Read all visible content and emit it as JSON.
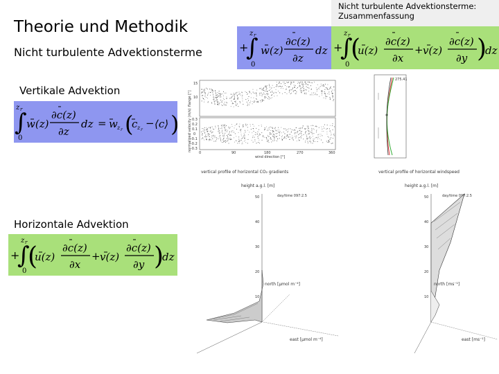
{
  "slide": {
    "title": "Theorie und Methodik",
    "subtitle": "Nicht turbulente Advektionsterme",
    "vertical_label": "Vertikale Advektion",
    "horizontal_label": "Horizontale Advektion",
    "summary_title": "Nicht turbulente Advektionsterme: Zusammenfassung"
  },
  "equations": {
    "z_limit": "z",
    "z_sub": "r",
    "lower_limit": "0",
    "w_term": "w(z)",
    "u_term": "u(z)",
    "v_term": "v(z)",
    "dc_term": "∂c(z)",
    "dz": "∂z",
    "dx": "∂x",
    "dy": "∂y",
    "int_var": "dz",
    "eq_rhs_w": "w",
    "eq_rhs_c": "c",
    "eq_rhs_cmean": "⟨c⟩",
    "plus": "+",
    "equals": "="
  },
  "figures": {
    "scatter": {
      "ylabel_top": "flange [°]",
      "ylabel_bottom": "normalized velocity (m/s)",
      "xlabel": "wind direction [°]",
      "xticks": [
        "0",
        "90",
        "180",
        "270",
        "360"
      ],
      "yticks_bottom": [
        "0.3",
        "0.2",
        "0.1",
        "0",
        "-0.1",
        "-0.2",
        "-0.3"
      ],
      "yticks_top": [
        "15",
        "10"
      ]
    },
    "profile_small": {
      "annotation": "275.41"
    },
    "co2_profile": {
      "title": "vertical profile of horizontal CO₂ gradients",
      "zlabel": "height a.g.l. [m]",
      "date": "day/time 097:2.5",
      "north_label": "north [μmol m⁻⁴]",
      "east_label": "east [μmol m⁻⁴]",
      "zticks": [
        "50",
        "40",
        "30",
        "20",
        "10"
      ]
    },
    "wind_profile": {
      "title": "vertical profile of horizontal windspeed",
      "zlabel": "height a.g.l. [m]",
      "date": "day/time 097:2.5",
      "north_label": "north [ms⁻¹]",
      "east_label": "east [ms⁻¹]",
      "zticks": [
        "50",
        "40",
        "30",
        "20",
        "10"
      ]
    }
  },
  "colors": {
    "equation_blue": "#8e96f0",
    "equation_green": "#a9e07a",
    "summary_bg": "#efefef"
  }
}
